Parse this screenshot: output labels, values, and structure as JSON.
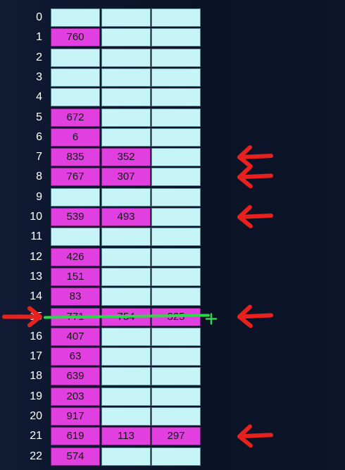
{
  "table": {
    "rows": [
      {
        "index": "0",
        "values": [
          "",
          "",
          ""
        ]
      },
      {
        "index": "1",
        "values": [
          "760",
          "",
          ""
        ]
      },
      {
        "index": "2",
        "values": [
          "",
          "",
          ""
        ]
      },
      {
        "index": "3",
        "values": [
          "",
          "",
          ""
        ]
      },
      {
        "index": "4",
        "values": [
          "",
          "",
          ""
        ]
      },
      {
        "index": "5",
        "values": [
          "672",
          "",
          ""
        ]
      },
      {
        "index": "6",
        "values": [
          "6",
          "",
          ""
        ]
      },
      {
        "index": "7",
        "values": [
          "835",
          "352",
          ""
        ]
      },
      {
        "index": "8",
        "values": [
          "767",
          "307",
          ""
        ]
      },
      {
        "index": "9",
        "values": [
          "",
          "",
          ""
        ]
      },
      {
        "index": "10",
        "values": [
          "539",
          "493",
          ""
        ]
      },
      {
        "index": "11",
        "values": [
          "",
          "",
          ""
        ]
      },
      {
        "index": "12",
        "values": [
          "426",
          "",
          ""
        ]
      },
      {
        "index": "13",
        "values": [
          "151",
          "",
          ""
        ]
      },
      {
        "index": "14",
        "values": [
          "83",
          "",
          ""
        ]
      },
      {
        "index": "15",
        "values": [
          "771",
          "754",
          "325"
        ]
      },
      {
        "index": "16",
        "values": [
          "407",
          "",
          ""
        ]
      },
      {
        "index": "17",
        "values": [
          "63",
          "",
          ""
        ]
      },
      {
        "index": "18",
        "values": [
          "639",
          "",
          ""
        ]
      },
      {
        "index": "19",
        "values": [
          "203",
          "",
          ""
        ]
      },
      {
        "index": "20",
        "values": [
          "917",
          "",
          ""
        ]
      },
      {
        "index": "21",
        "values": [
          "619",
          "113",
          "297"
        ]
      },
      {
        "index": "22",
        "values": [
          "574",
          "",
          ""
        ]
      }
    ]
  },
  "annotations": {
    "arrow_rows": [
      "7",
      "8",
      "10",
      "15",
      "21"
    ],
    "left_arrow_row": "15",
    "strike_row": "15",
    "arrow_color": "#e8201e",
    "strike_color": "#2fd84a"
  },
  "colors": {
    "background": "#0c1428",
    "empty_cell": "#c7f4f7",
    "filled_cell": "#e23fe0"
  }
}
